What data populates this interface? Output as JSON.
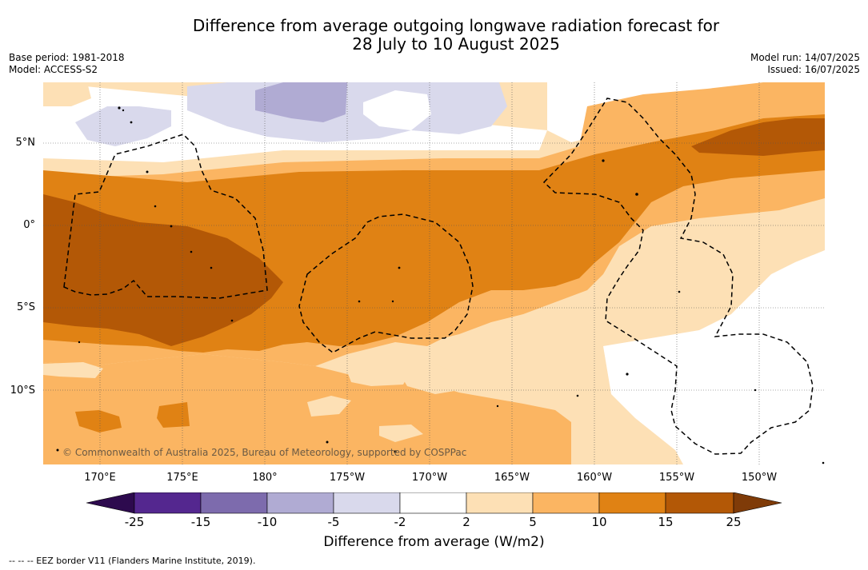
{
  "title": {
    "line1": "Difference from average outgoing longwave radiation forecast for",
    "line2": "28 July to 10 August 2025"
  },
  "meta_left": {
    "base_period": "Base period: 1981-2018",
    "model": "Model: ACCESS-S2"
  },
  "meta_right": {
    "model_run": "Model run: 14/07/2025",
    "issued": "Issued: 16/07/2025"
  },
  "copyright": "© Commonwealth of Australia 2025, Bureau of Meteorology, supported by COSPPac",
  "lat_labels": [
    "5°N",
    "0°",
    "5°S",
    "10°S"
  ],
  "lon_labels": [
    "170°E",
    "175°E",
    "180°",
    "175°W",
    "170°W",
    "165°W",
    "160°W",
    "155°W",
    "150°W"
  ],
  "colorbar": {
    "ticks": [
      "-25",
      "-15",
      "-10",
      "-5",
      "-2",
      "2",
      "5",
      "10",
      "15",
      "25"
    ],
    "label": "Difference from average (W/m2)",
    "colors": {
      "lt_-25": "#2d0a4e",
      "-25_-15": "#54278f",
      "-15_-10": "#7d6bad",
      "-10_-5": "#b0abd3",
      "-5_-2": "#d9d9ec",
      "-2_2": "#ffffff",
      "2_5": "#fde0b5",
      "5_10": "#fbb562",
      "10_15": "#e08214",
      "15_25": "#b35806",
      "gt_25": "#7f3b08"
    }
  },
  "footnote": "-- -- -- EEZ border V11 (Flanders Marine Institute, 2019)."
}
